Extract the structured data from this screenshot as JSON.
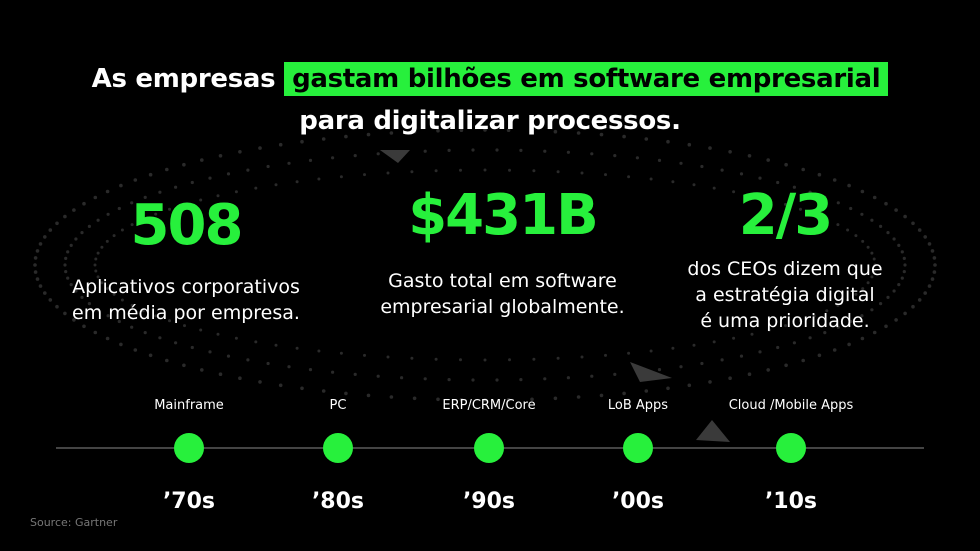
{
  "headline": {
    "prefix": "As empresas",
    "highlight": "gastam bilhões em software empresarial",
    "line2": "para digitalizar processos."
  },
  "stats": [
    {
      "value": "508",
      "desc_line1": "Aplicativos corporativos",
      "desc_line2": "em média por empresa."
    },
    {
      "value": "$431B",
      "desc_line1": "Gasto total em software",
      "desc_line2": "empresarial globalmente."
    },
    {
      "value": "2/3",
      "desc_line1": "dos CEOs dizem que",
      "desc_line2": "a estratégia digital",
      "desc_line3": "é uma prioridade."
    }
  ],
  "timeline": [
    {
      "label": "Mainframe",
      "decade": "’70s"
    },
    {
      "label": "PC",
      "decade": "’80s"
    },
    {
      "label": "ERP/CRM/Core",
      "decade": "’90s"
    },
    {
      "label": "LoB Apps",
      "decade": "’00s"
    },
    {
      "label": "Cloud /Mobile Apps",
      "decade": "’10s"
    }
  ],
  "source": "Source: Gartner",
  "colors": {
    "accent": "#27f03c",
    "background": "#000000",
    "timeline_line": "#444444"
  }
}
